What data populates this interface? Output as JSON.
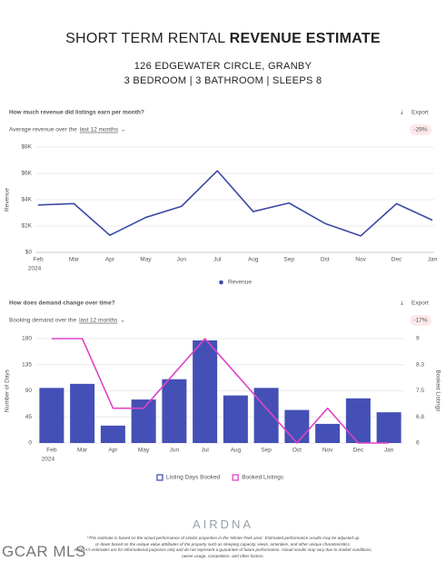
{
  "header": {
    "title_regular": "SHORT TERM RENTAL",
    "title_bold": "REVENUE ESTIMATE",
    "address": "126 EDGEWATER CIRCLE, GRANBY",
    "details": "3 BEDROOM | 3 BATHROOM | SLEEPS 8"
  },
  "chart_data": [
    {
      "type": "line",
      "title": "How much revenue did listings earn per month?",
      "export": "Export",
      "subtitle": "Average revenue over the",
      "period": "last 12 months",
      "change": "-29%",
      "categories": [
        "Feb",
        "Mar",
        "Apr",
        "May",
        "Jun",
        "Jul",
        "Aug",
        "Sep",
        "Oct",
        "Nov",
        "Dec",
        "Jan"
      ],
      "year": "2024",
      "y_label": "Revenue",
      "series": [
        {
          "name": "Revenue",
          "color": "#3d4aa6",
          "values": [
            3600,
            3700,
            1300,
            2650,
            3500,
            6200,
            3100,
            3750,
            2200,
            1250,
            3700,
            2450
          ]
        }
      ],
      "ylim": [
        0,
        8000
      ],
      "yticks": [
        {
          "value": 0,
          "label": "$0"
        },
        {
          "value": 2000,
          "label": "$2K"
        },
        {
          "value": 4000,
          "label": "$4K"
        },
        {
          "value": 6000,
          "label": "$6K"
        },
        {
          "value": 8000,
          "label": "$8K"
        }
      ],
      "grid": true
    },
    {
      "type": "bar",
      "title": "How does demand change over time?",
      "export": "Export",
      "subtitle": "Booking demand over the",
      "period": "last 12 months",
      "change": "-17%",
      "categories": [
        "Feb",
        "Mar",
        "Apr",
        "May",
        "Jun",
        "Jul",
        "Aug",
        "Sep",
        "Oct",
        "Nov",
        "Dec",
        "Jan"
      ],
      "year": "2024",
      "y_label": "Number of Days",
      "y2_label": "Booked Listings",
      "series": [
        {
          "name": "Listing Days Booked",
          "color": "#4450b5",
          "values": [
            95,
            102,
            30,
            75,
            110,
            177,
            82,
            95,
            57,
            33,
            77,
            53
          ]
        },
        {
          "name": "Booked Listings",
          "color": "#de45c5",
          "axis": "y2",
          "values": [
            9,
            9,
            7,
            7,
            8,
            9,
            8,
            7,
            6,
            7,
            6,
            6
          ]
        }
      ],
      "ylim": [
        0,
        180
      ],
      "yticks": [
        0,
        45,
        90,
        135,
        180
      ],
      "y2lim": [
        6,
        9
      ],
      "y2ticks": [
        6,
        {
          "value": 6.75,
          "label": "6.8"
        },
        7.5,
        {
          "value": 8.25,
          "label": "8.3"
        },
        9
      ],
      "grid": true
    }
  ],
  "footer": {
    "logo": "AIRDNA",
    "disclaimer": [
      "*This estimate is based on the actual performance of similar properties in the 'Winter Park area'. Estimated performance results may be adjusted up",
      "or down based on the unique value attributes of the property such as sleeping capacity, views, amenities, and other unique characteristics.",
      "AirDNA's estimates are for informational purposes only and do not represent a guarantee of future performance. Actual results may vary due to market conditions,",
      "owner usage, competition, and other factors."
    ],
    "watermark": "GCAR MLS"
  }
}
